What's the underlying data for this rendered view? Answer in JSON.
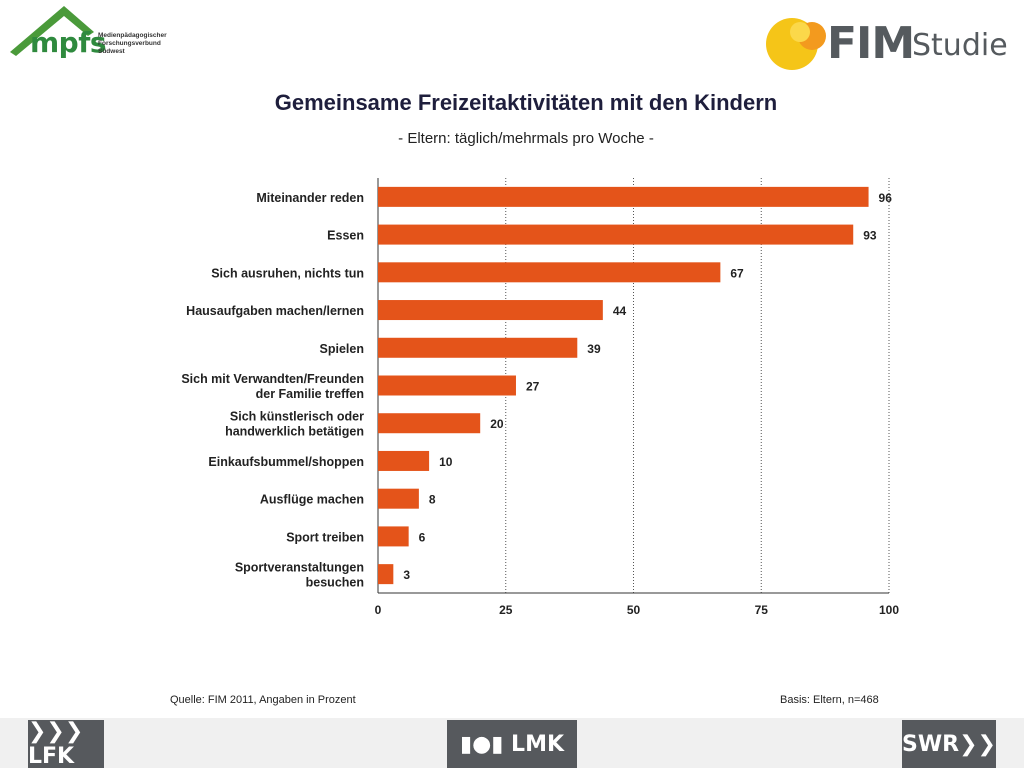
{
  "logos": {
    "mpfs": {
      "name": "mpfs",
      "subtitle": [
        "Medienpädagogischer",
        "Forschungsverbund",
        "Südwest"
      ]
    },
    "fim": {
      "word": "FIM",
      "suffix": "Studie"
    },
    "footer": {
      "lfk": "❯❯❯LFK",
      "lmk": "▮●▮ LMK",
      "swr": "SWR❯❯"
    }
  },
  "colors": {
    "bar": "#e4541a",
    "title": "#1e1e3c",
    "footer": "#56595d"
  },
  "chart_data": {
    "type": "bar",
    "orientation": "horizontal",
    "title": "Gemeinsame Freizeitaktivitäten mit den Kindern",
    "subtitle": "- Eltern: täglich/mehrmals pro Woche -",
    "categories": [
      [
        "Miteinander reden"
      ],
      [
        "Essen"
      ],
      [
        "Sich ausruhen, nichts tun"
      ],
      [
        "Hausaufgaben machen/lernen"
      ],
      [
        "Spielen"
      ],
      [
        "Sich mit Verwandten/Freunden",
        "der Familie treffen"
      ],
      [
        "Sich künstlerisch oder",
        "handwerklich betätigen"
      ],
      [
        "Einkaufsbummel/shoppen"
      ],
      [
        "Ausflüge machen"
      ],
      [
        "Sport treiben"
      ],
      [
        "Sportveranstaltungen",
        "besuchen"
      ]
    ],
    "values": [
      96,
      93,
      67,
      44,
      39,
      27,
      20,
      10,
      8,
      6,
      3
    ],
    "xlim": [
      0,
      100
    ],
    "xticks": [
      0,
      25,
      50,
      75,
      100
    ],
    "grid": true
  },
  "notes": {
    "source": "Quelle: FIM 2011, Angaben in Prozent",
    "basis": "Basis: Eltern, n=468"
  }
}
